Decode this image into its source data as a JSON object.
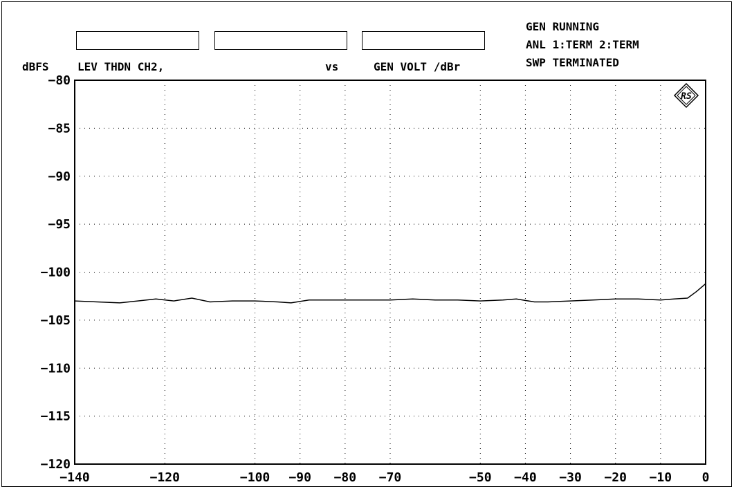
{
  "header": {
    "ylabel": "dBFS",
    "trace_label": "LEV THDN CH2,",
    "vs_label": "vs",
    "x_label": "GEN VOLT ∕dBr",
    "status": [
      "GEN RUNNING",
      "ANL 1:TERM 2:TERM",
      "SWP TERMINATED"
    ],
    "info_boxes": [
      "",
      "",
      ""
    ]
  },
  "logo": {
    "text": "RS",
    "icon": "rohde-schwarz-logo"
  },
  "chart_data": {
    "type": "line",
    "xlabel": "GEN VOLT ∕dBr",
    "ylabel": "dBFS",
    "title": "LEV THDN CH2,",
    "xlim": [
      -140,
      0
    ],
    "ylim": [
      -120,
      -80
    ],
    "grid": true,
    "xticks": [
      -140,
      -120,
      -100,
      -90,
      -80,
      -70,
      -50,
      -40,
      -30,
      -20,
      -10,
      0
    ],
    "yticks": [
      -80,
      -85,
      -90,
      -95,
      -100,
      -105,
      -110,
      -115,
      -120
    ],
    "series": [
      {
        "x": [
          -140,
          -135,
          -130,
          -126,
          -122,
          -118,
          -114,
          -110,
          -105,
          -100,
          -95,
          -92,
          -88,
          -84,
          -80,
          -75,
          -70,
          -65,
          -60,
          -55,
          -50,
          -45,
          -42,
          -38,
          -35,
          -30,
          -25,
          -20,
          -15,
          -10,
          -7,
          -4,
          -2,
          0
        ],
        "values": [
          -103.0,
          -103.1,
          -103.2,
          -103.0,
          -102.8,
          -103.0,
          -102.7,
          -103.1,
          -103.0,
          -103.0,
          -103.1,
          -103.2,
          -102.9,
          -102.9,
          -102.9,
          -102.9,
          -102.9,
          -102.8,
          -102.9,
          -102.9,
          -103.0,
          -102.9,
          -102.8,
          -103.1,
          -103.1,
          -103.0,
          -102.9,
          -102.8,
          -102.8,
          -102.9,
          -102.8,
          -102.7,
          -102.0,
          -101.2
        ]
      }
    ]
  }
}
